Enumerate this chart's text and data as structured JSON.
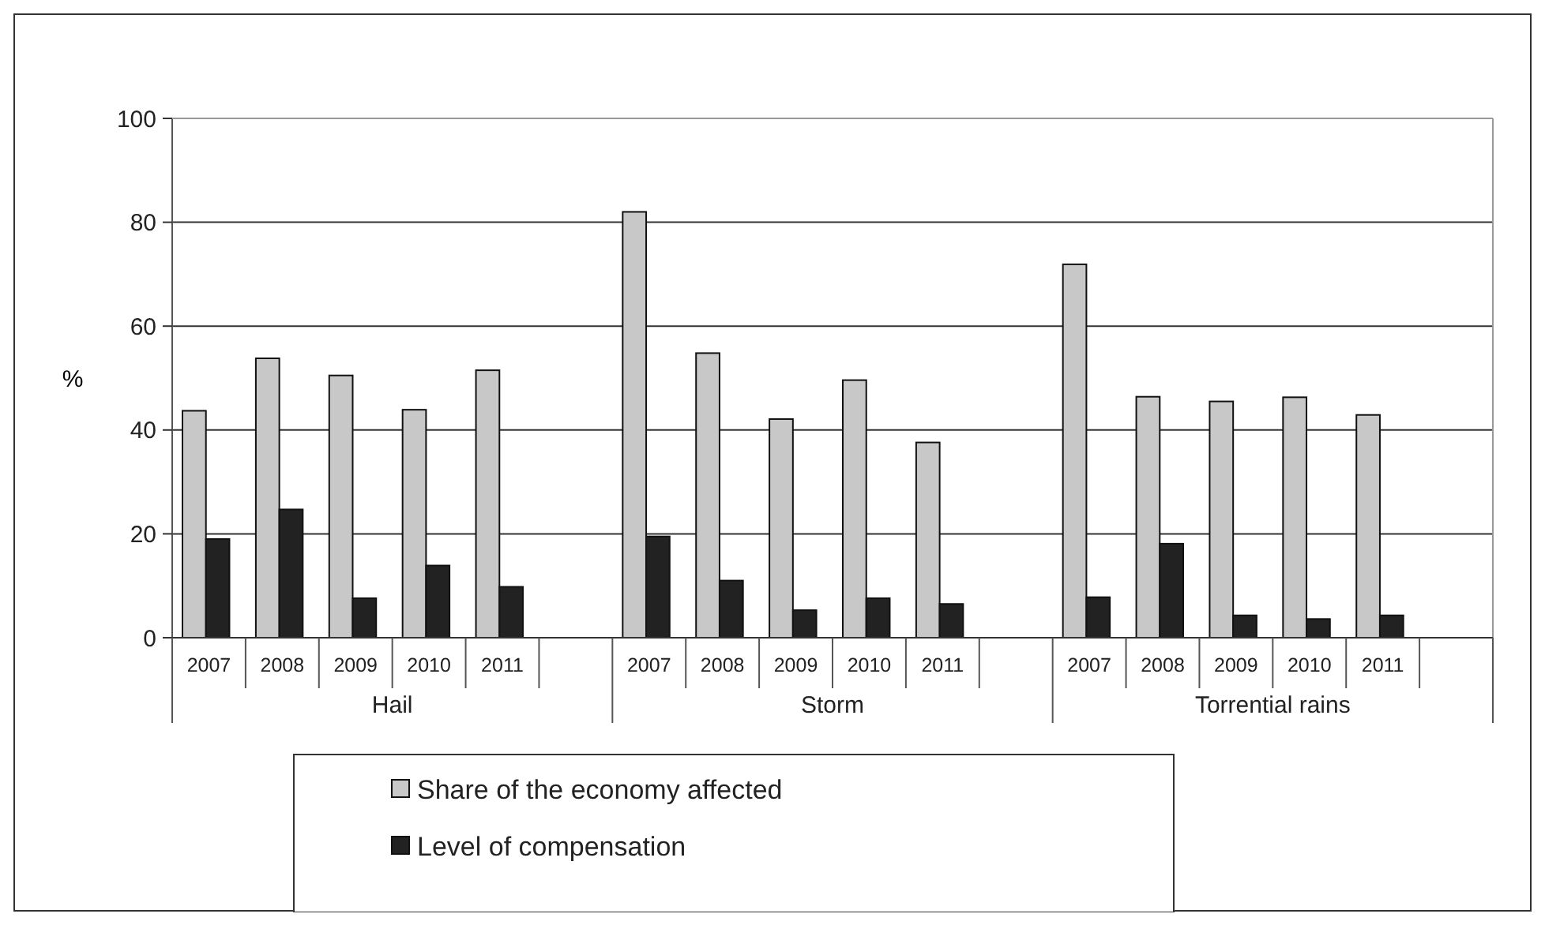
{
  "chart_data": {
    "type": "bar",
    "ylabel": "%",
    "categories": [
      "2007",
      "2008",
      "2009",
      "2010",
      "2011",
      null,
      "2007",
      "2008",
      "2009",
      "2010",
      "2011",
      null,
      "2007",
      "2008",
      "2009",
      "2010",
      "2011",
      null
    ],
    "annotations": [
      "Hail",
      "Storm",
      "Torrential rains"
    ],
    "series": [
      {
        "name": "Share of the economy affected",
        "color": "#c8c8c8",
        "values": [
          43.7,
          53.8,
          50.5,
          43.9,
          51.5,
          null,
          82,
          54.8,
          42.1,
          49.6,
          37.6,
          null,
          71.9,
          46.4,
          45.5,
          46.3,
          42.9,
          null
        ]
      },
      {
        "name": "Level of compensation",
        "color": "#222222",
        "values": [
          19,
          24.7,
          7.6,
          13.9,
          9.8,
          null,
          19.5,
          11,
          5.3,
          7.6,
          6.5,
          null,
          7.8,
          18.1,
          4.3,
          3.6,
          4.3,
          null
        ]
      }
    ],
    "ylim": [
      0,
      100
    ],
    "yticks": [
      0,
      20,
      40,
      60,
      80,
      100
    ],
    "grid": "y",
    "legend": "bottom"
  }
}
